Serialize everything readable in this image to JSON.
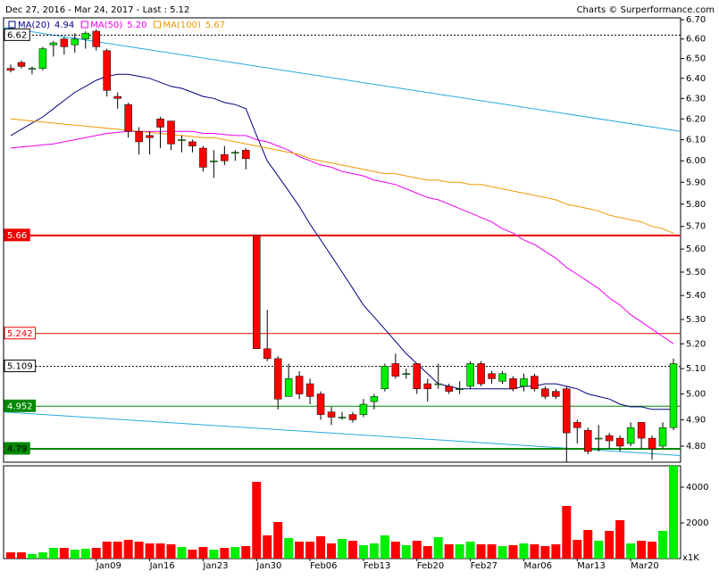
{
  "chart_data": [
    {
      "type": "candlestick",
      "title": "Dec 27, 2016 - Mar 24, 2017 - Last : 5.12",
      "credit": "Charts © Surperformance.com",
      "categories": [
        null,
        null,
        null,
        null,
        null,
        null,
        null,
        null,
        "Jan09",
        null,
        null,
        null,
        null,
        "Jan16",
        null,
        null,
        null,
        null,
        "Jan23",
        null,
        null,
        null,
        null,
        "Jan30",
        null,
        null,
        null,
        null,
        "Feb06",
        null,
        null,
        null,
        null,
        "Feb13",
        null,
        null,
        null,
        null,
        "Feb20",
        null,
        null,
        null,
        null,
        "Feb27",
        null,
        null,
        null,
        null,
        "Mar06",
        null,
        null,
        null,
        null,
        "Mar13",
        null,
        null,
        null,
        null,
        "Mar20",
        null,
        null,
        null,
        null
      ],
      "open": [
        6.45,
        6.48,
        6.45,
        6.45,
        6.57,
        6.6,
        6.57,
        6.6,
        6.64,
        6.54,
        6.31,
        6.27,
        6.14,
        6.12,
        6.2,
        6.19,
        6.1,
        6.09,
        6.06,
        6.0,
        6.03,
        6.04,
        6.05,
        5.66,
        5.18,
        5.14,
        4.99,
        5.07,
        5.04,
        5.0,
        4.93,
        4.91,
        4.92,
        4.92,
        4.97,
        5.02,
        5.12,
        5.08,
        5.12,
        5.04,
        5.04,
        5.03,
        5.02,
        5.03,
        5.12,
        5.08,
        5.05,
        5.06,
        5.03,
        5.07,
        5.02,
        5.01,
        5.02,
        4.89,
        4.86,
        4.83,
        4.84,
        4.83,
        4.81,
        4.89,
        4.83,
        4.8,
        4.87
      ],
      "high": [
        6.47,
        6.49,
        6.46,
        6.56,
        6.59,
        6.61,
        6.63,
        6.64,
        6.65,
        6.55,
        6.33,
        6.28,
        6.16,
        6.14,
        6.21,
        6.19,
        6.12,
        6.1,
        6.07,
        6.05,
        6.07,
        6.05,
        6.06,
        5.66,
        5.34,
        5.15,
        5.12,
        5.09,
        5.06,
        5.01,
        4.95,
        4.93,
        4.93,
        4.98,
        5.0,
        5.12,
        5.16,
        5.1,
        5.12,
        5.06,
        5.12,
        5.04,
        5.05,
        5.13,
        5.13,
        5.09,
        5.09,
        5.07,
        5.08,
        5.08,
        5.03,
        5.02,
        5.03,
        4.9,
        4.87,
        4.88,
        4.85,
        4.84,
        4.89,
        4.89,
        4.84,
        4.89,
        5.14
      ],
      "low": [
        6.43,
        6.45,
        6.42,
        6.44,
        6.51,
        6.52,
        6.53,
        6.55,
        6.54,
        6.31,
        6.25,
        6.11,
        6.03,
        6.03,
        6.06,
        6.05,
        6.04,
        6.04,
        5.95,
        5.92,
        5.98,
        6.0,
        5.96,
        5.18,
        5.13,
        4.94,
        4.99,
        4.98,
        4.96,
        4.9,
        4.88,
        4.9,
        4.89,
        4.91,
        4.94,
        5.01,
        5.06,
        5.06,
        5.0,
        4.97,
        5.02,
        5.0,
        5.0,
        5.02,
        5.03,
        5.04,
        5.04,
        5.01,
        5.01,
        5.01,
        4.98,
        4.98,
        4.73,
        4.81,
        4.77,
        4.78,
        4.79,
        4.78,
        4.8,
        4.79,
        4.75,
        4.79,
        4.86
      ],
      "close": [
        6.44,
        6.46,
        6.45,
        6.55,
        6.58,
        6.56,
        6.6,
        6.63,
        6.56,
        6.34,
        6.3,
        6.14,
        6.09,
        6.11,
        6.16,
        6.08,
        6.1,
        6.07,
        5.97,
        6.0,
        6.0,
        6.04,
        6.01,
        5.18,
        5.14,
        4.98,
        5.06,
        5.0,
        4.99,
        4.92,
        4.91,
        4.91,
        4.9,
        4.96,
        4.99,
        5.11,
        5.07,
        5.08,
        5.02,
        5.02,
        5.04,
        5.01,
        5.02,
        5.12,
        5.04,
        5.06,
        5.08,
        5.02,
        5.06,
        5.02,
        4.99,
        4.99,
        4.85,
        4.87,
        4.78,
        4.83,
        4.82,
        4.8,
        4.87,
        4.83,
        4.79,
        4.87,
        5.12
      ],
      "up_color": "#00ee00",
      "down_color": "#ff0000",
      "log_scale": true,
      "ylim": [
        4.74,
        6.71
      ],
      "yticks": [
        {
          "value": 6.7,
          "label": "6.70"
        },
        {
          "value": 6.6,
          "label": "6.60"
        },
        {
          "value": 6.5,
          "label": "6.50"
        },
        {
          "value": 6.4,
          "label": "6.40"
        },
        {
          "value": 6.3,
          "label": "6.30"
        },
        {
          "value": 6.2,
          "label": "6.20"
        },
        {
          "value": 6.1,
          "label": "6.10"
        },
        {
          "value": 6.0,
          "label": "6.00"
        },
        {
          "value": 5.9,
          "label": "5.90"
        },
        {
          "value": 5.8,
          "label": "5.80"
        },
        {
          "value": 5.7,
          "label": "5.70"
        },
        {
          "value": 5.6,
          "label": "5.60"
        },
        {
          "value": 5.5,
          "label": "5.50"
        },
        {
          "value": 5.4,
          "label": "5.40"
        },
        {
          "value": 5.3,
          "label": "5.30"
        },
        {
          "value": 5.2,
          "label": "5.20"
        },
        {
          "value": 5.1,
          "label": "5.10"
        },
        {
          "value": 5.0,
          "label": "5.00"
        },
        {
          "value": 4.9,
          "label": "4.90"
        },
        {
          "value": 4.8,
          "label": "4.80"
        }
      ],
      "series": [
        {
          "name": "MA(20)",
          "color": "#000080",
          "legend_value": "4.94",
          "values": [
            6.12,
            6.15,
            6.18,
            6.21,
            6.25,
            6.29,
            6.33,
            6.36,
            6.39,
            6.41,
            6.42,
            6.42,
            6.41,
            6.4,
            6.38,
            6.36,
            6.35,
            6.33,
            6.31,
            6.3,
            6.28,
            6.27,
            6.25,
            6.12,
            6.0,
            5.93,
            5.86,
            5.79,
            5.71,
            5.64,
            5.57,
            5.5,
            5.43,
            5.36,
            5.31,
            5.26,
            5.21,
            5.16,
            5.12,
            5.08,
            5.04,
            5.03,
            5.02,
            5.02,
            5.02,
            5.02,
            5.02,
            5.02,
            5.03,
            5.03,
            5.04,
            5.04,
            5.03,
            5.02,
            5.0,
            4.99,
            4.98,
            4.96,
            4.95,
            4.95,
            4.94,
            4.94,
            4.94
          ]
        },
        {
          "name": "MA(50)",
          "color": "#ee00ee",
          "legend_value": "5.20",
          "values": [
            6.06,
            6.065,
            6.07,
            6.075,
            6.08,
            6.09,
            6.1,
            6.11,
            6.12,
            6.13,
            6.135,
            6.14,
            6.14,
            6.14,
            6.14,
            6.14,
            6.14,
            6.14,
            6.13,
            6.13,
            6.125,
            6.12,
            6.12,
            6.1,
            6.09,
            6.07,
            6.05,
            6.02,
            6.0,
            5.98,
            5.97,
            5.95,
            5.94,
            5.93,
            5.91,
            5.9,
            5.89,
            5.87,
            5.85,
            5.83,
            5.82,
            5.8,
            5.78,
            5.76,
            5.74,
            5.72,
            5.69,
            5.67,
            5.64,
            5.62,
            5.59,
            5.56,
            5.52,
            5.49,
            5.46,
            5.43,
            5.39,
            5.36,
            5.32,
            5.29,
            5.26,
            5.23,
            5.2
          ]
        },
        {
          "name": "MA(100)",
          "color": "#ee9900",
          "legend_value": "5.67",
          "values": [
            6.2,
            6.195,
            6.19,
            6.185,
            6.18,
            6.175,
            6.17,
            6.165,
            6.16,
            6.155,
            6.15,
            6.145,
            6.14,
            6.135,
            6.13,
            6.125,
            6.12,
            6.115,
            6.11,
            6.11,
            6.1,
            6.09,
            6.08,
            6.07,
            6.06,
            6.05,
            6.04,
            6.03,
            6.01,
            6.0,
            5.99,
            5.98,
            5.97,
            5.96,
            5.95,
            5.94,
            5.94,
            5.93,
            5.92,
            5.91,
            5.91,
            5.9,
            5.9,
            5.89,
            5.89,
            5.88,
            5.87,
            5.86,
            5.85,
            5.84,
            5.83,
            5.82,
            5.8,
            5.79,
            5.78,
            5.77,
            5.75,
            5.74,
            5.73,
            5.72,
            5.7,
            5.69,
            5.67
          ]
        }
      ],
      "levels": [
        {
          "value": 6.62,
          "color": "#000000",
          "style": "dotted",
          "width": 1,
          "label_fill": "#ffffff",
          "label_color": "#000000"
        },
        {
          "value": 5.66,
          "color": "#ee0000",
          "style": "solid",
          "width": 2,
          "label_fill": "#ee0000",
          "label_color": "#ffffff"
        },
        {
          "value": 5.242,
          "color": "#ee0000",
          "style": "solid",
          "width": 1,
          "label_fill": "#ffffff",
          "label_color": "#ee0000"
        },
        {
          "value": 5.109,
          "color": "#000000",
          "style": "dotted",
          "width": 1,
          "label_fill": "#ffffff",
          "label_color": "#000000"
        },
        {
          "value": 4.952,
          "color": "#008800",
          "style": "solid",
          "width": 1,
          "label_fill": "#008800",
          "label_color": "#ffffff"
        },
        {
          "value": 4.79,
          "color": "#008800",
          "style": "solid",
          "width": 2,
          "label_fill": "#008800",
          "label_color": "#000000"
        }
      ],
      "trendlines": [
        {
          "color": "#22aadd",
          "values": [
            6.66,
            6.14
          ]
        },
        {
          "color": "#22aadd",
          "values": [
            4.93,
            4.765
          ]
        }
      ]
    },
    {
      "type": "bar",
      "values": [
        350,
        350,
        250,
        350,
        600,
        600,
        500,
        550,
        600,
        950,
        950,
        1050,
        950,
        850,
        850,
        800,
        650,
        500,
        650,
        500,
        600,
        650,
        700,
        4300,
        1300,
        2050,
        1150,
        950,
        950,
        1250,
        850,
        1100,
        1000,
        750,
        850,
        1300,
        950,
        750,
        1000,
        700,
        1200,
        800,
        800,
        950,
        800,
        800,
        700,
        750,
        850,
        800,
        700,
        800,
        2950,
        1050,
        1600,
        1000,
        1550,
        2150,
        850,
        1000,
        950,
        1550,
        5200
      ],
      "ylim": [
        0,
        5200
      ],
      "yticks": [
        2000,
        4000
      ],
      "unit_label": "x1K"
    }
  ]
}
